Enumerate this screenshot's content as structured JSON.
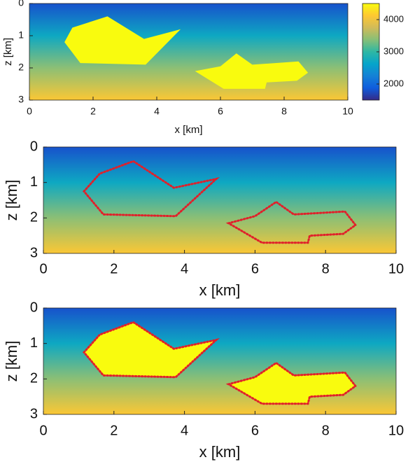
{
  "chart_data": [
    {
      "type": "heatmap",
      "xlabel": "x [km]",
      "ylabel": "z [km]",
      "xlim": [
        0,
        10
      ],
      "ylim": [
        3,
        0
      ],
      "xticks": [
        0,
        2,
        4,
        6,
        8,
        10
      ],
      "yticks": [
        0,
        1,
        2,
        3
      ],
      "background": {
        "z": [
          0,
          1,
          2,
          3
        ],
        "values": [
          1800,
          2700,
          3400,
          4100
        ]
      },
      "polygons": [
        {
          "value": 4500,
          "x": [
            1.1,
            1.35,
            2.45,
            3.6,
            4.75,
            3.65,
            1.6
          ],
          "z": [
            1.2,
            0.75,
            0.4,
            1.1,
            0.8,
            1.9,
            1.85
          ]
        },
        {
          "value": 4500,
          "x": [
            5.2,
            6.0,
            6.5,
            7.0,
            8.45,
            8.75,
            8.4,
            7.45,
            7.4,
            6.1
          ],
          "z": [
            2.1,
            1.95,
            1.55,
            1.9,
            1.8,
            2.15,
            2.4,
            2.45,
            2.65,
            2.65
          ]
        }
      ],
      "colorbar": {
        "clim": [
          1500,
          4500
        ],
        "ticks": [
          2000,
          3000,
          4000
        ]
      }
    },
    {
      "type": "heatmap",
      "xlabel": "x [km]",
      "ylabel": "z [km]",
      "xlim": [
        0,
        10
      ],
      "ylim": [
        3,
        0
      ],
      "xticks": [
        0,
        2,
        4,
        6,
        8,
        10
      ],
      "yticks": [
        0,
        1,
        2,
        3
      ],
      "background": {
        "z": [
          0,
          1,
          2,
          3
        ],
        "values": [
          1800,
          2700,
          3400,
          4100
        ]
      },
      "outline_color": "#e0202a",
      "polygons": [
        {
          "x": [
            1.15,
            1.6,
            2.55,
            3.7,
            4.9,
            3.75,
            1.7
          ],
          "z": [
            1.25,
            0.75,
            0.4,
            1.15,
            0.9,
            1.95,
            1.9
          ]
        },
        {
          "x": [
            5.25,
            6.0,
            6.6,
            7.1,
            8.55,
            8.85,
            8.5,
            7.55,
            7.5,
            6.2
          ],
          "z": [
            2.15,
            1.95,
            1.55,
            1.9,
            1.82,
            2.2,
            2.45,
            2.5,
            2.7,
            2.7
          ]
        }
      ]
    },
    {
      "type": "heatmap",
      "xlabel": "x [km]",
      "ylabel": "z [km]",
      "xlim": [
        0,
        10
      ],
      "ylim": [
        3,
        0
      ],
      "xticks": [
        0,
        2,
        4,
        6,
        8,
        10
      ],
      "yticks": [
        0,
        1,
        2,
        3
      ],
      "background": {
        "z": [
          0,
          1,
          2,
          3
        ],
        "values": [
          1800,
          2700,
          3400,
          4100
        ]
      },
      "outline_color": "#e0202a",
      "polygons": [
        {
          "value": 4500,
          "x": [
            1.15,
            1.6,
            2.55,
            3.7,
            4.9,
            3.75,
            1.7
          ],
          "z": [
            1.25,
            0.75,
            0.4,
            1.15,
            0.9,
            1.95,
            1.9
          ]
        },
        {
          "value": 4500,
          "x": [
            5.25,
            6.0,
            6.6,
            7.1,
            8.55,
            8.85,
            8.5,
            7.55,
            7.5,
            6.2
          ],
          "z": [
            2.15,
            1.95,
            1.55,
            1.9,
            1.82,
            2.2,
            2.45,
            2.5,
            2.7,
            2.7
          ]
        }
      ]
    }
  ]
}
